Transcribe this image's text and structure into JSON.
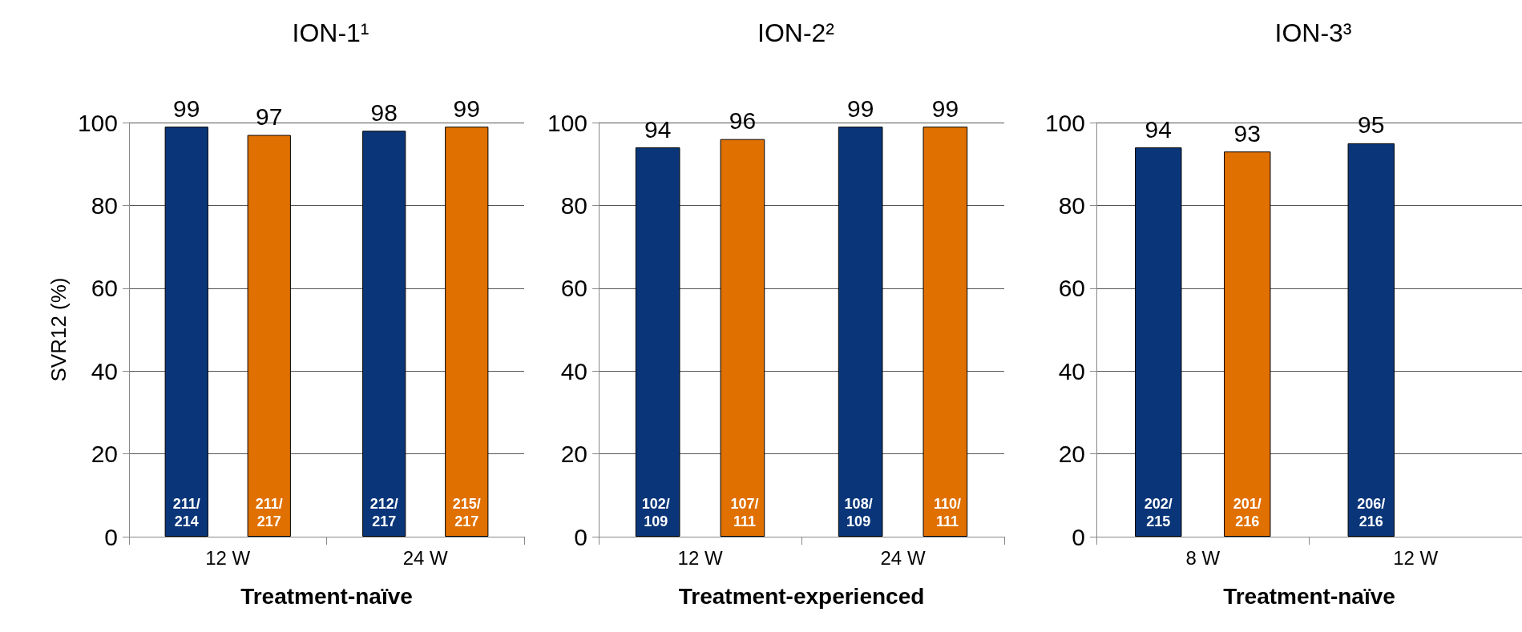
{
  "chart_data": [
    {
      "type": "bar",
      "title": "ION-1¹",
      "ylabel": "SVR12 (%)",
      "xlabel": "Treatment-naïve",
      "categories": [
        "12 W",
        "24 W"
      ],
      "ylim": [
        0,
        100
      ],
      "yticks": [
        0,
        20,
        40,
        60,
        80,
        100
      ],
      "grid": "y",
      "data_labels": true,
      "annotations": [
        "211/214",
        "212/217",
        "211/217",
        "215/217"
      ],
      "series": [
        {
          "color": "#0a3679",
          "values": [
            99,
            98
          ]
        },
        {
          "color": "#e07000",
          "values": [
            97,
            99
          ]
        }
      ]
    },
    {
      "type": "bar",
      "title": "ION-2²",
      "xlabel": "Treatment-experienced",
      "categories": [
        "12 W",
        "24 W"
      ],
      "ylim": [
        0,
        100
      ],
      "yticks": [
        0,
        20,
        40,
        60,
        80,
        100
      ],
      "grid": "y",
      "data_labels": true,
      "annotations": [
        "102/109",
        "108/109",
        "107/111",
        "110/111"
      ],
      "series": [
        {
          "color": "#0a3679",
          "values": [
            94,
            99
          ]
        },
        {
          "color": "#e07000",
          "values": [
            96,
            99
          ]
        }
      ]
    },
    {
      "type": "bar",
      "title": "ION-3³",
      "xlabel": "Treatment-naïve",
      "categories": [
        "8 W",
        "12 W"
      ],
      "ylim": [
        0,
        100
      ],
      "yticks": [
        0,
        20,
        40,
        60,
        80,
        100
      ],
      "grid": "y",
      "data_labels": true,
      "annotations": [
        "202/215",
        "206/216",
        "201/216"
      ],
      "series": [
        {
          "color": "#0a3679",
          "values": [
            94,
            95
          ]
        },
        {
          "color": "#e07000",
          "values": [
            93,
            null
          ]
        }
      ]
    }
  ]
}
